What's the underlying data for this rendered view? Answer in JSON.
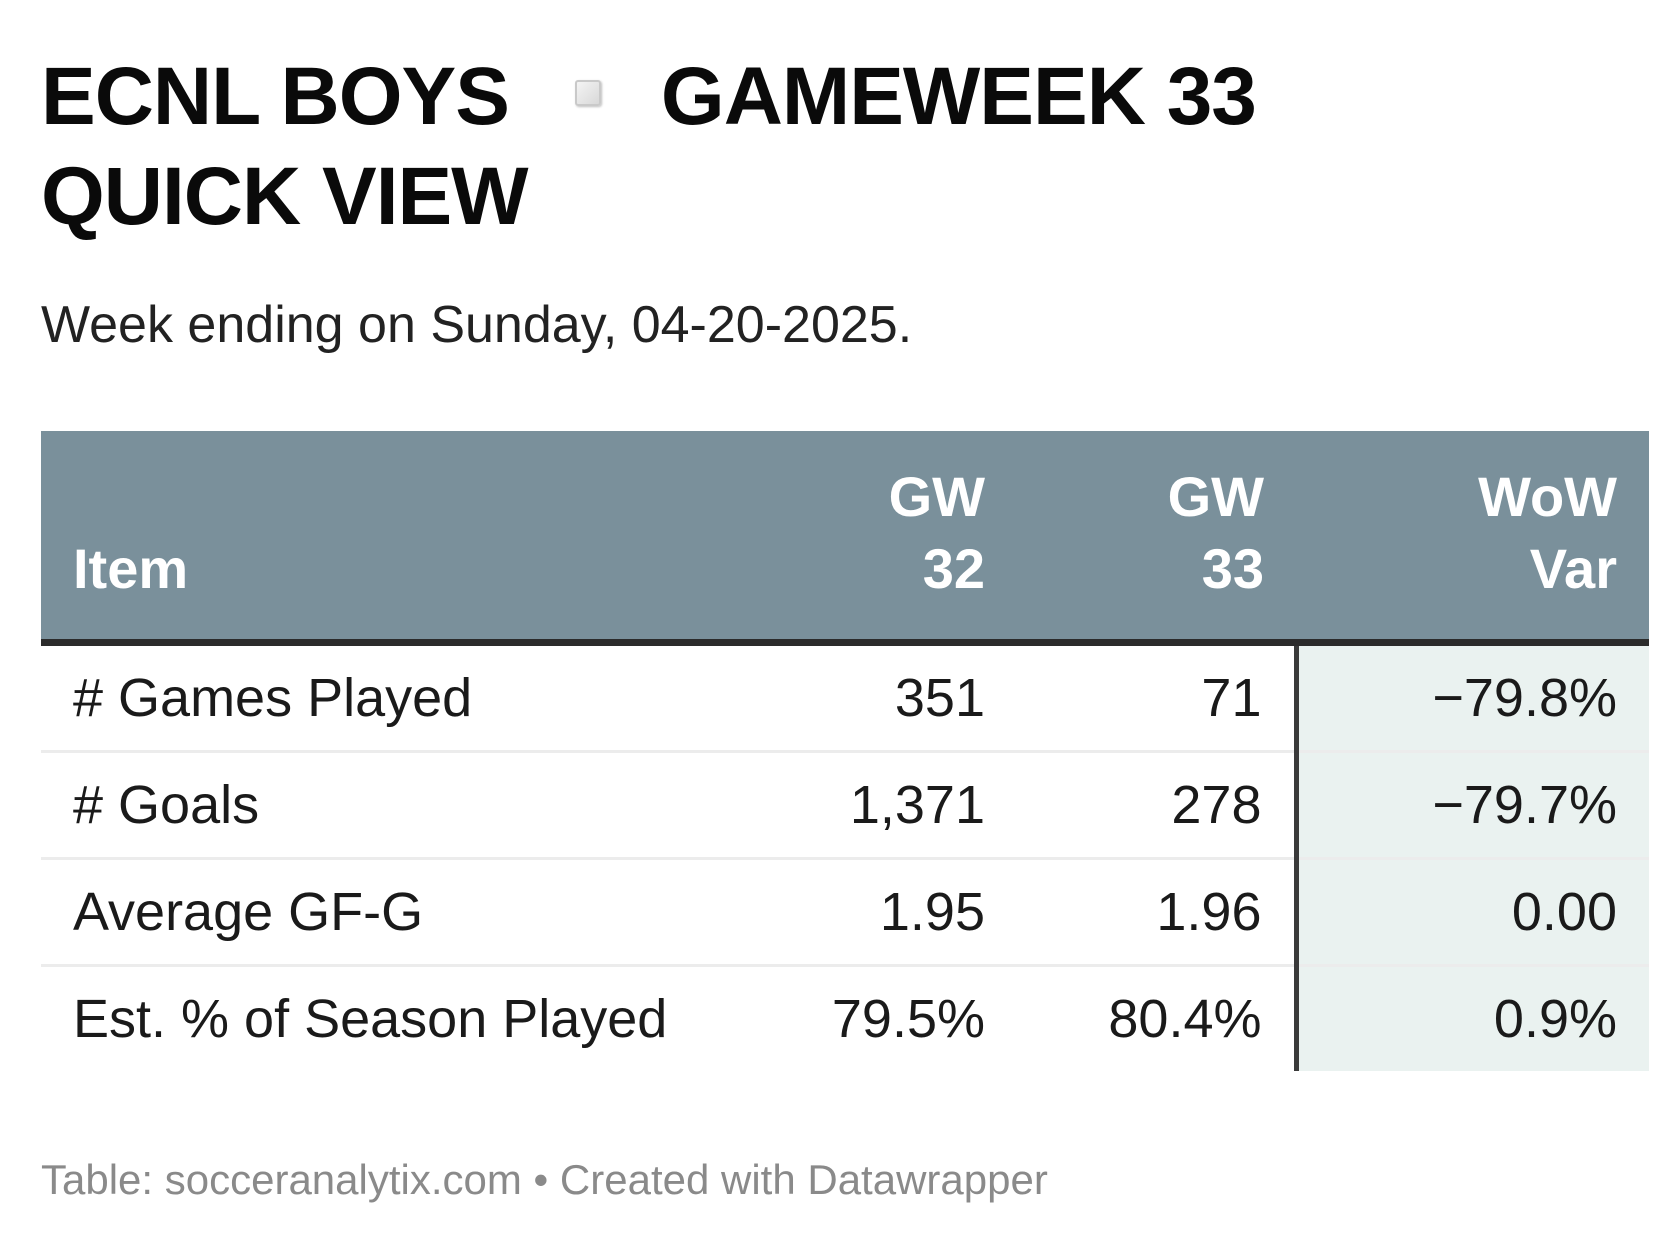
{
  "header": {
    "title_part1": "ECNL BOYS",
    "title_part2": "GAMEWEEK 33",
    "title_line2": "QUICK VIEW",
    "subtitle": "Week ending on Sunday, 04-20-2025."
  },
  "chart_data": {
    "type": "table",
    "columns": [
      {
        "line1": "Item",
        "line2": ""
      },
      {
        "line1": "GW",
        "line2": "32"
      },
      {
        "line1": "GW",
        "line2": "33"
      },
      {
        "line1": "WoW",
        "line2": "Var"
      }
    ],
    "rows": [
      {
        "item": "# Games Played",
        "gw32": "351",
        "gw33": "71",
        "var": "−79.8%"
      },
      {
        "item": "# Goals",
        "gw32": "1,371",
        "gw33": "278",
        "var": "−79.7%"
      },
      {
        "item": "Average GF-G",
        "gw32": "1.95",
        "gw33": "1.96",
        "var": "0.00"
      },
      {
        "item": "Est. % of Season Played",
        "gw32": "79.5%",
        "gw33": "80.4%",
        "var": "0.9%"
      }
    ],
    "colors": {
      "header_bg": "#7a909b",
      "header_text": "#ffffff",
      "var_column_bg": "#eaf2f0"
    }
  },
  "footer": {
    "text": "Table: socceranalytix.com • Created with Datawrapper"
  }
}
